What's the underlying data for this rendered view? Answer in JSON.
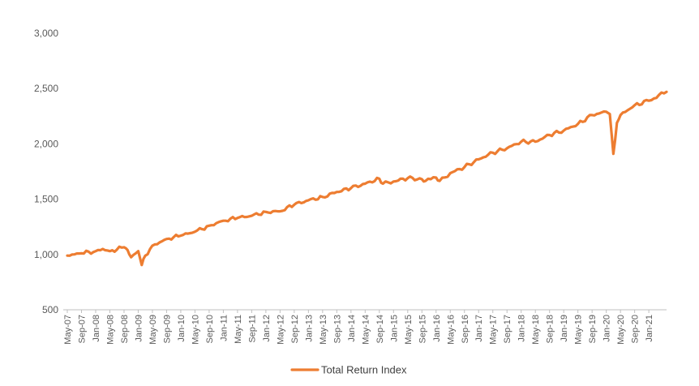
{
  "chart_data": {
    "type": "line",
    "title": "",
    "xlabel": "",
    "ylabel": "",
    "ylim": [
      500,
      3000
    ],
    "yticks": [
      500,
      1000,
      1500,
      2000,
      2500,
      3000
    ],
    "ytick_labels": [
      "500",
      "1,000",
      "1,500",
      "2,000",
      "2,500",
      "3,000"
    ],
    "xtick_labels": [
      "May-07",
      "Sep-07",
      "Jan-08",
      "May-08",
      "Sep-08",
      "Jan-09",
      "May-09",
      "Sep-09",
      "Jan-10",
      "May-10",
      "Sep-10",
      "Jan-11",
      "May-11",
      "Sep-11",
      "Jan-12",
      "May-12",
      "Sep-12",
      "Jan-13",
      "May-13",
      "Sep-13",
      "Jan-14",
      "May-14",
      "Sep-14",
      "Jan-15",
      "May-15",
      "Sep-15",
      "Jan-16",
      "May-16",
      "Sep-16",
      "Jan-17",
      "May-17",
      "Sep-17",
      "Jan-18",
      "May-18",
      "Sep-18",
      "Jan-19",
      "May-19",
      "Sep-19",
      "Jan-20",
      "May-20",
      "Sep-20",
      "Jan-21"
    ],
    "grid": false,
    "legend_position": "bottom",
    "colors": {
      "series": "#ED7D31",
      "axis": "#BFBFBF",
      "text": "#595959"
    },
    "series": [
      {
        "name": "Total Return Index",
        "x": [
          "May-07",
          "Sep-07",
          "Jan-08",
          "Mar-08",
          "May-08",
          "Sep-08",
          "Oct-08",
          "Nov-08",
          "Jan-09",
          "Feb-09",
          "Mar-09",
          "May-09",
          "Sep-09",
          "Jan-10",
          "May-10",
          "Sep-10",
          "Jan-11",
          "May-11",
          "Sep-11",
          "Jan-12",
          "May-12",
          "Sep-12",
          "Jan-13",
          "May-13",
          "Sep-13",
          "Jan-14",
          "May-14",
          "Sep-14",
          "Oct-14",
          "Jan-15",
          "May-15",
          "Sep-15",
          "Oct-15",
          "Jan-16",
          "Feb-16",
          "May-16",
          "Sep-16",
          "Jan-17",
          "May-17",
          "Sep-17",
          "Jan-18",
          "May-18",
          "Sep-18",
          "Jan-19",
          "May-19",
          "Sep-19",
          "Jan-20",
          "Feb-20",
          "Mar-20",
          "Apr-20",
          "May-20",
          "Sep-20",
          "Jan-21",
          "Jun-21"
        ],
        "values": [
          990,
          1010,
          1030,
          1050,
          1030,
          1065,
          1040,
          975,
          1030,
          905,
          990,
          1080,
          1140,
          1170,
          1205,
          1260,
          1305,
          1330,
          1350,
          1385,
          1390,
          1450,
          1490,
          1520,
          1565,
          1600,
          1640,
          1685,
          1640,
          1660,
          1690,
          1680,
          1665,
          1695,
          1665,
          1735,
          1790,
          1860,
          1920,
          1960,
          2020,
          2020,
          2080,
          2120,
          2180,
          2260,
          2290,
          2270,
          1910,
          2190,
          2260,
          2350,
          2390,
          2470
        ]
      }
    ]
  }
}
